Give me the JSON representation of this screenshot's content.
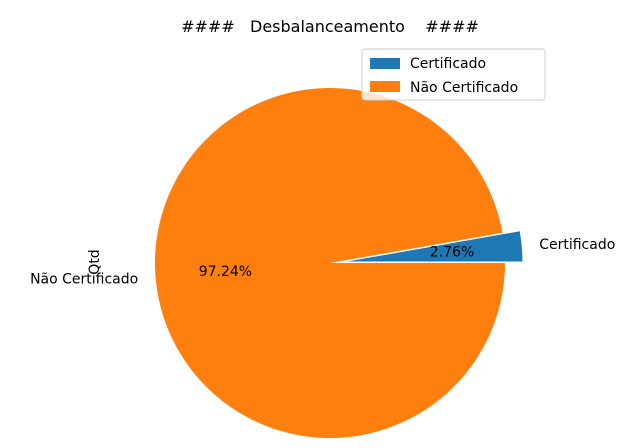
{
  "chart_data": {
    "type": "pie",
    "title": "####   Desbalanceamento    ####",
    "ylabel": "Qtd",
    "slices": [
      {
        "label": "Certificado",
        "value": 2.76,
        "pct_label": "2.76%",
        "color": "#1f77b4",
        "explode": true
      },
      {
        "label": "Não Certificado",
        "value": 97.24,
        "pct_label": "97.24%",
        "color": "#ff7f0e",
        "explode": false
      }
    ],
    "legend": {
      "position": "top-right",
      "entries": [
        "Certificado",
        "Não Certificado"
      ]
    }
  }
}
